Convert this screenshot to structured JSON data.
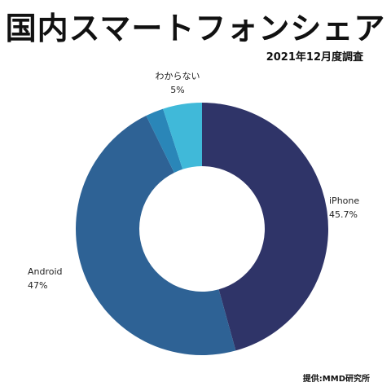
{
  "header": {
    "title": "国内スマートフォンシェア",
    "subtitle": "2021年12月度調査"
  },
  "footer": {
    "source": "提供:MMD研究所"
  },
  "chart_data": {
    "type": "pie",
    "title": "国内スマートフォンシェア",
    "subtitle": "2021年12月度調査",
    "donut": true,
    "slices": [
      {
        "label": "iPhone",
        "value_label": "45.7%",
        "value": 45.7,
        "color": "#2f3468"
      },
      {
        "label": "Android",
        "value_label": "47%",
        "value": 47,
        "color": "#2e6295"
      },
      {
        "label": "",
        "value_label": "",
        "value": 2.3,
        "color": "#2a86b8"
      },
      {
        "label": "わからない",
        "value_label": "5%",
        "value": 5,
        "color": "#40b9d9"
      }
    ]
  }
}
